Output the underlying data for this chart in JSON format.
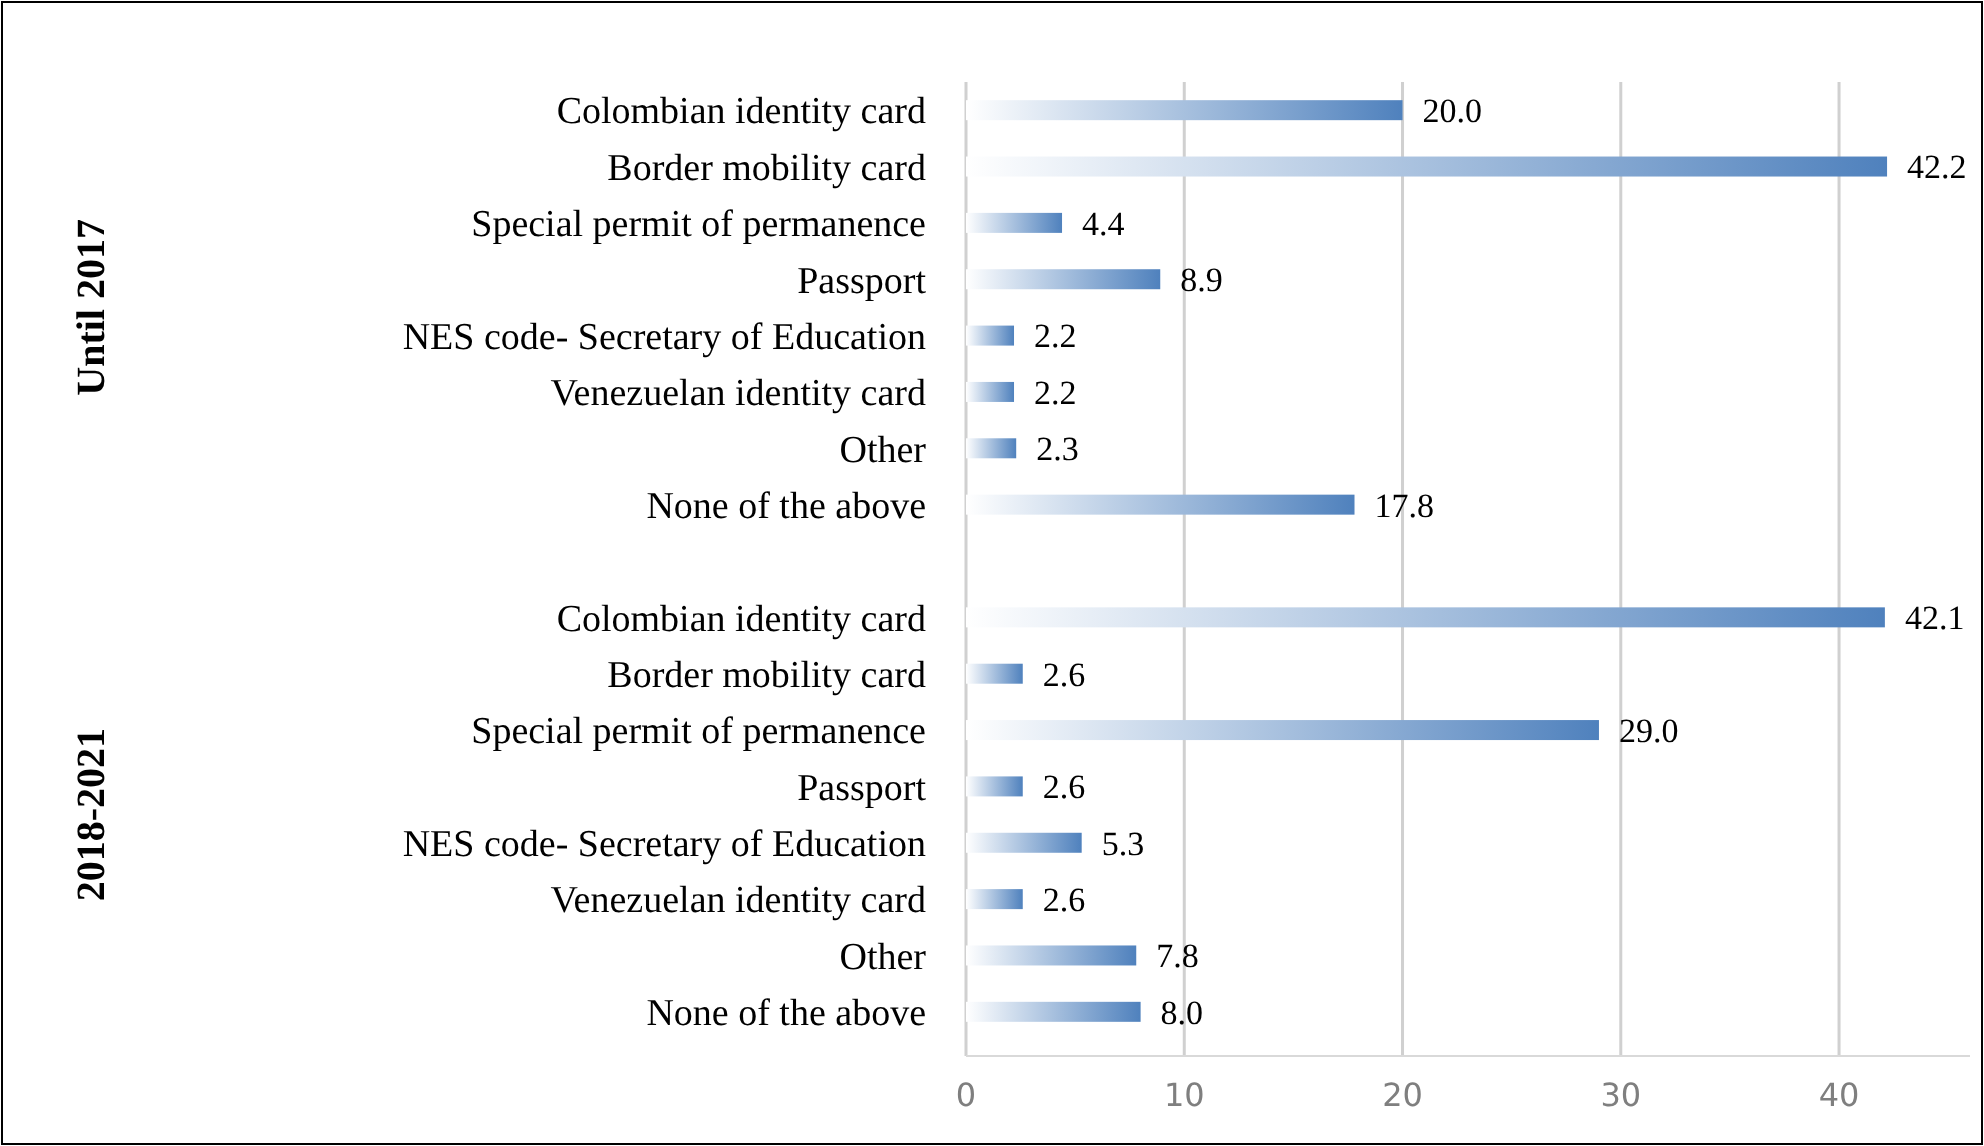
{
  "chart_data": {
    "type": "bar",
    "orientation": "horizontal",
    "categories": [
      "Colombian identity card",
      "Border mobility card",
      "Special permit of permanence",
      "Passport",
      "NES code- Secretary of Education",
      "Venezuelan identity card",
      "Other",
      "None of the above",
      null,
      "Colombian identity card",
      "Border mobility card",
      "Special permit of permanence",
      "Passport",
      "NES code- Secretary of Education",
      "Venezuelan identity card",
      "Other",
      "None of the above"
    ],
    "values": [
      20.0,
      42.2,
      4.4,
      8.9,
      2.2,
      2.2,
      2.3,
      17.8,
      null,
      42.1,
      2.6,
      29.0,
      2.6,
      5.3,
      2.6,
      7.8,
      8.0
    ],
    "color": "#4f81bd",
    "value_labels": [
      "20.0",
      "42.2",
      "4.4",
      "8.9",
      "2.2",
      "2.2",
      "2.3",
      "17.8",
      null,
      "42.1",
      "2.6",
      "29.0",
      "2.6",
      "5.3",
      "2.6",
      "7.8",
      "8.0"
    ],
    "xlim": [
      0,
      46
    ],
    "xticks": [
      0,
      10,
      20,
      30,
      40
    ],
    "grid": "x",
    "annotations": [
      "Until 2017",
      "2018-2021"
    ]
  }
}
